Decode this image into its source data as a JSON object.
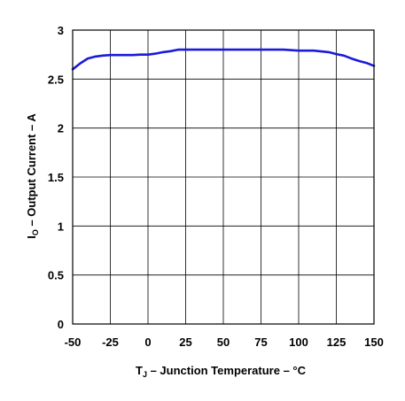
{
  "chart_data": {
    "type": "line",
    "xlabel": {
      "prefix": "T",
      "subscript": "J",
      "suffix": "  – Junction Temperature – °C"
    },
    "ylabel": {
      "prefix": "I",
      "subscript": "O",
      "suffix": " – Output Current – A"
    },
    "xlim": [
      -50,
      150
    ],
    "ylim": [
      0,
      3
    ],
    "x_ticks": [
      -50,
      -25,
      0,
      25,
      50,
      75,
      100,
      125,
      150
    ],
    "x_tick_labels": [
      "-50",
      "-25",
      "0",
      "25",
      "50",
      "75",
      "100",
      "125",
      "150"
    ],
    "y_ticks": [
      0,
      0.5,
      1,
      1.5,
      2,
      2.5,
      3
    ],
    "y_tick_labels": [
      "0",
      "0.5",
      "1",
      "1.5",
      "2",
      "2.5",
      "3"
    ],
    "grid": true,
    "series": [
      {
        "color": "#1a1adb",
        "x": [
          -50,
          -45,
          -40,
          -35,
          -30,
          -25,
          -20,
          -15,
          -10,
          -5,
          0,
          5,
          10,
          15,
          20,
          25,
          30,
          40,
          50,
          60,
          70,
          80,
          90,
          100,
          110,
          120,
          125,
          130,
          135,
          140,
          145,
          150
        ],
        "y": [
          2.6,
          2.66,
          2.71,
          2.73,
          2.74,
          2.745,
          2.745,
          2.745,
          2.745,
          2.75,
          2.75,
          2.76,
          2.775,
          2.785,
          2.8,
          2.8,
          2.8,
          2.8,
          2.8,
          2.8,
          2.8,
          2.8,
          2.8,
          2.79,
          2.79,
          2.775,
          2.755,
          2.74,
          2.71,
          2.685,
          2.665,
          2.635
        ]
      }
    ]
  }
}
